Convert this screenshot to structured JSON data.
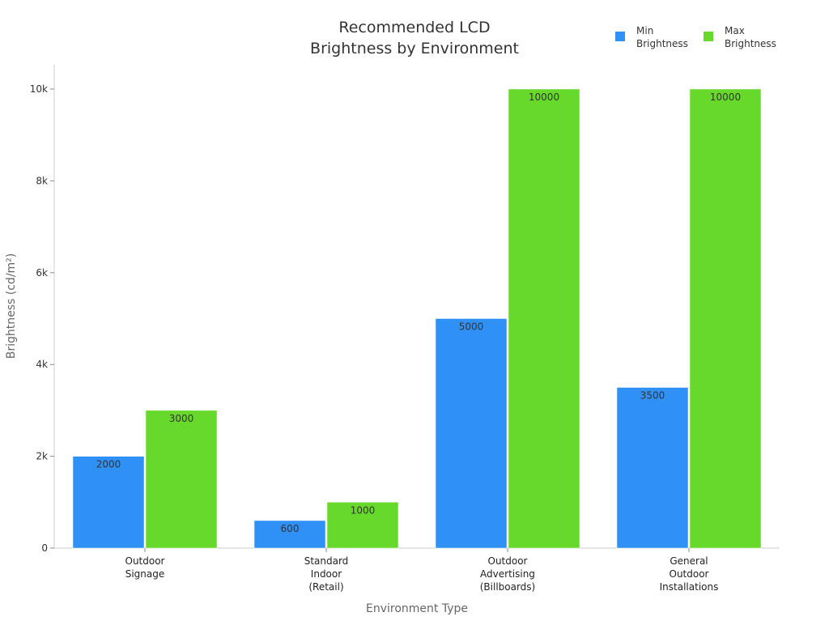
{
  "chart_data": {
    "type": "bar",
    "title": [
      "Recommended LCD",
      "Brightness by Environment"
    ],
    "xlabel": "Environment Type",
    "ylabel": "Brightness (cd/m²)",
    "categories": [
      [
        "Outdoor",
        "Signage"
      ],
      [
        "Standard",
        "Indoor",
        "(Retail)"
      ],
      [
        "Outdoor",
        "Advertising",
        "(Billboards)"
      ],
      [
        "General",
        "Outdoor",
        "Installations"
      ]
    ],
    "series": [
      {
        "name": [
          "Min",
          "Brightness"
        ],
        "color": "#2f91f6",
        "values": [
          2000,
          600,
          5000,
          3500
        ]
      },
      {
        "name": [
          "Max",
          "Brightness"
        ],
        "color": "#67d92a",
        "values": [
          3000,
          1000,
          10000,
          10000
        ]
      }
    ],
    "ylim": [
      0,
      10500
    ],
    "yticks": [
      0,
      2000,
      4000,
      6000,
      8000,
      10000
    ],
    "ytick_labels": [
      "0",
      "2k",
      "4k",
      "6k",
      "8k",
      "10k"
    ],
    "grid": false,
    "legend": "top-right"
  }
}
